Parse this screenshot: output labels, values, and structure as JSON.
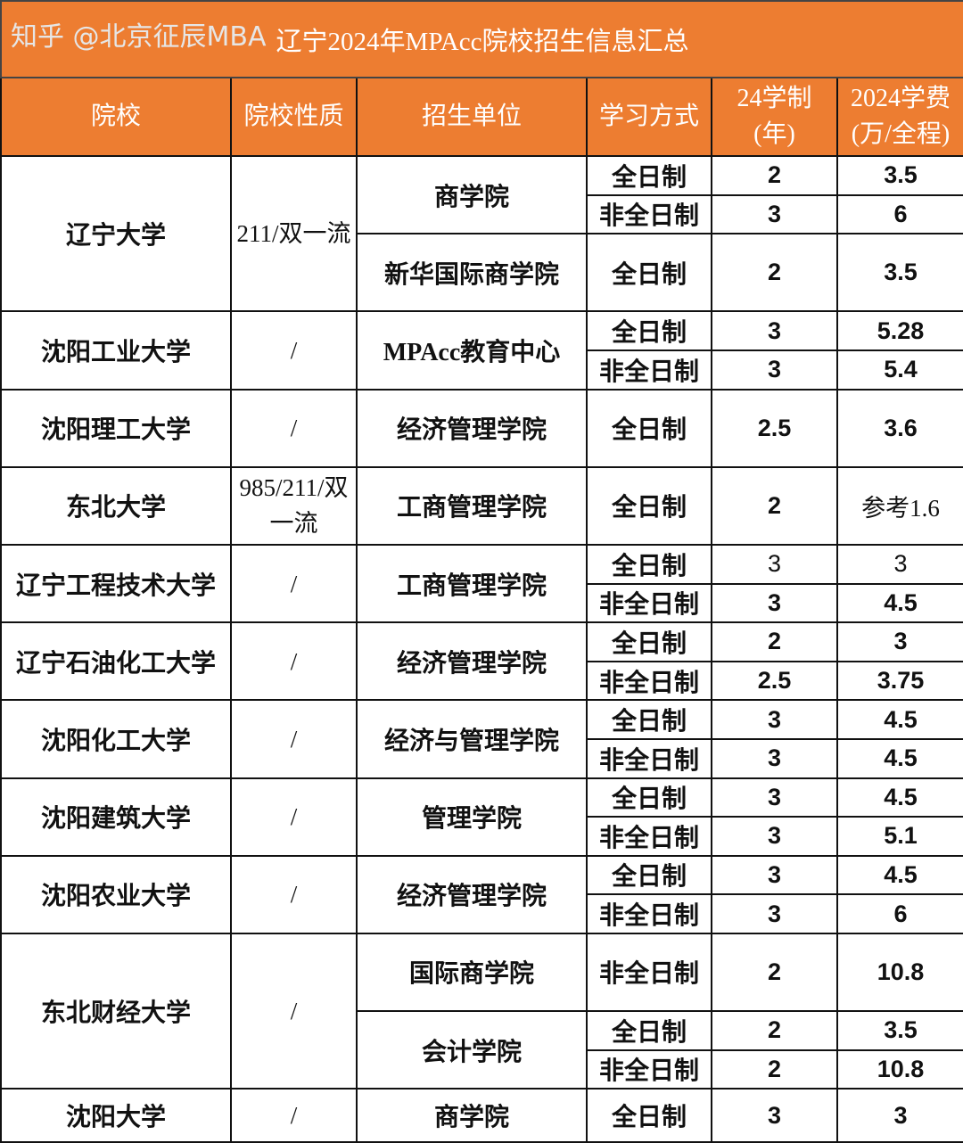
{
  "title": "辽宁2024年MPAcc院校招生信息汇总",
  "headers": [
    "院校",
    "院校性质",
    "招生单位",
    "学习方式",
    "24学制\n(年)",
    "2024学费\n(万/全程)"
  ],
  "colors": {
    "header_bg": "#ED7D31",
    "header_text": "#FFFFFF",
    "border": "#111111"
  },
  "schools": [
    {
      "name": "辽宁大学",
      "type": "211/双一流",
      "units": [
        {
          "name": "商学院",
          "programs": [
            {
              "mode": "全日制",
              "years": "2",
              "fee": "3.5"
            },
            {
              "mode": "非全日制",
              "years": "3",
              "fee": "6"
            }
          ]
        },
        {
          "name": "新华国际商学院",
          "programs": [
            {
              "mode": "全日制",
              "years": "2",
              "fee": "3.5"
            }
          ]
        }
      ]
    },
    {
      "name": "沈阳工业大学",
      "type": "/",
      "units": [
        {
          "name": "MPAcc教育中心",
          "programs": [
            {
              "mode": "全日制",
              "years": "3",
              "fee": "5.28"
            },
            {
              "mode": "非全日制",
              "years": "3",
              "fee": "5.4"
            }
          ]
        }
      ]
    },
    {
      "name": "沈阳理工大学",
      "type": "/",
      "units": [
        {
          "name": "经济管理学院",
          "programs": [
            {
              "mode": "全日制",
              "years": "2.5",
              "fee": "3.6"
            }
          ]
        }
      ]
    },
    {
      "name": "东北大学",
      "type": "985/211/双一流",
      "units": [
        {
          "name": "工商管理学院",
          "programs": [
            {
              "mode": "全日制",
              "years": "2",
              "fee": "参考1.6"
            }
          ]
        }
      ]
    },
    {
      "name": "辽宁工程技术大学",
      "type": "/",
      "units": [
        {
          "name": "工商管理学院",
          "programs": [
            {
              "mode": "全日制",
              "years": "3",
              "fee": "3"
            },
            {
              "mode": "非全日制",
              "years": "3",
              "fee": "4.5"
            }
          ]
        }
      ]
    },
    {
      "name": "辽宁石油化工大学",
      "type": "/",
      "units": [
        {
          "name": "经济管理学院",
          "programs": [
            {
              "mode": "全日制",
              "years": "2",
              "fee": "3"
            },
            {
              "mode": "非全日制",
              "years": "2.5",
              "fee": "3.75"
            }
          ]
        }
      ]
    },
    {
      "name": "沈阳化工大学",
      "type": "/",
      "units": [
        {
          "name": "经济与管理学院",
          "programs": [
            {
              "mode": "全日制",
              "years": "3",
              "fee": "4.5"
            },
            {
              "mode": "非全日制",
              "years": "3",
              "fee": "4.5"
            }
          ]
        }
      ]
    },
    {
      "name": "沈阳建筑大学",
      "type": "/",
      "units": [
        {
          "name": "管理学院",
          "programs": [
            {
              "mode": "全日制",
              "years": "3",
              "fee": "4.5"
            },
            {
              "mode": "非全日制",
              "years": "3",
              "fee": "5.1"
            }
          ]
        }
      ]
    },
    {
      "name": "沈阳农业大学",
      "type": "/",
      "units": [
        {
          "name": "经济管理学院",
          "programs": [
            {
              "mode": "全日制",
              "years": "3",
              "fee": "4.5"
            },
            {
              "mode": "非全日制",
              "years": "3",
              "fee": "6"
            }
          ]
        }
      ]
    },
    {
      "name": "东北财经大学",
      "type": "/",
      "units": [
        {
          "name": "国际商学院",
          "programs": [
            {
              "mode": "非全日制",
              "years": "2",
              "fee": "10.8"
            }
          ]
        },
        {
          "name": "会计学院",
          "programs": [
            {
              "mode": "全日制",
              "years": "2",
              "fee": "3.5"
            },
            {
              "mode": "非全日制",
              "years": "2",
              "fee": "10.8"
            }
          ]
        }
      ]
    },
    {
      "name": "沈阳大学",
      "type": "/",
      "units": [
        {
          "name": "商学院",
          "programs": [
            {
              "mode": "全日制",
              "years": "3",
              "fee": "3"
            }
          ]
        }
      ]
    }
  ],
  "watermark": "知乎 @北京征辰MBA"
}
